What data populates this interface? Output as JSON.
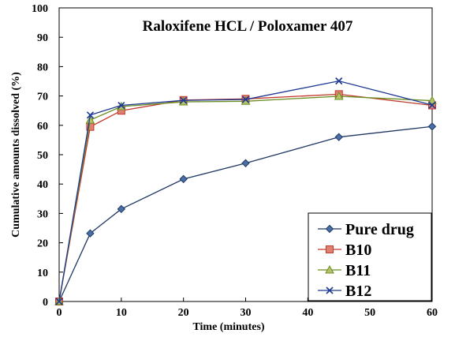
{
  "chart_data": {
    "type": "line",
    "title": "Raloxifene HCL / Poloxamer 407",
    "xlabel": "Time (minutes)",
    "ylabel": "Cumulative amounts dissolved (%)",
    "xlim": [
      0,
      60
    ],
    "ylim": [
      0,
      100
    ],
    "xticks": [
      0,
      10,
      20,
      30,
      40,
      50,
      60
    ],
    "yticks": [
      0,
      10,
      20,
      30,
      40,
      50,
      60,
      70,
      80,
      90,
      100
    ],
    "grid": false,
    "legend_position": "bottom-right",
    "series": [
      {
        "name": "Pure drug",
        "color": "#1f3864",
        "marker": "diamond",
        "x": [
          0,
          5,
          10,
          20,
          30,
          45,
          60
        ],
        "y": [
          0,
          23.2,
          31.5,
          41.7,
          47.1,
          56.0,
          59.6
        ]
      },
      {
        "name": "B10",
        "color": "#c0392b",
        "marker": "square",
        "x": [
          0,
          5,
          10,
          20,
          30,
          45,
          60
        ],
        "y": [
          0,
          59.5,
          65.0,
          68.6,
          69.0,
          70.6,
          66.8
        ]
      },
      {
        "name": "B11",
        "color": "#6b8e23",
        "marker": "triangle",
        "x": [
          0,
          5,
          10,
          20,
          30,
          45,
          60
        ],
        "y": [
          0,
          61.8,
          66.4,
          68.0,
          68.2,
          69.9,
          68.4
        ]
      },
      {
        "name": "B12",
        "color": "#1f3a93",
        "marker": "x",
        "x": [
          0,
          5,
          10,
          20,
          30,
          45,
          60
        ],
        "y": [
          0,
          63.5,
          66.8,
          68.5,
          68.8,
          75.1,
          66.9
        ]
      }
    ]
  }
}
